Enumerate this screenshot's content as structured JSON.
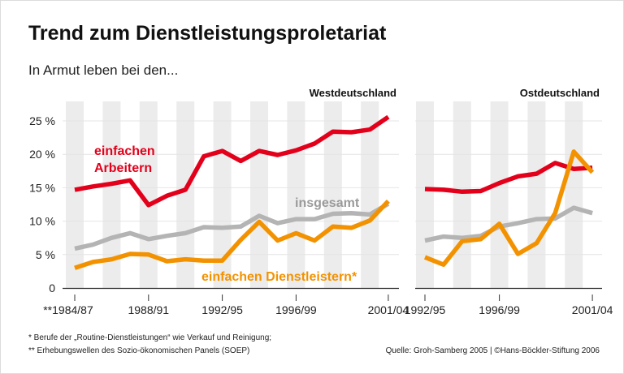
{
  "title": "Trend zum Dienstleistungsproletariat",
  "subtitle": "In Armut leben bei den...",
  "footnote1": "* Berufe der „Routine-Dienstleistungen“ wie Verkauf und Reinigung;",
  "footnote2": "** Erhebungswellen des Sozio-ökonomischen Panels (SOEP)",
  "source": "Quelle: Groh-Samberg 2005 | ©Hans-Böckler-Stiftung 2006",
  "colors": {
    "red": "#e3001b",
    "grey": "#b4b4b4",
    "orange": "#f39200",
    "band": "#ececec"
  },
  "chart_data": [
    {
      "type": "line",
      "title": "Westdeutschland",
      "x": [
        1984,
        1985,
        1986,
        1987,
        1988,
        1989,
        1990,
        1991,
        1992,
        1993,
        1994,
        1995,
        1996,
        1997,
        1998,
        1999,
        2000,
        2001
      ],
      "xticks": [
        {
          "index": 0,
          "label": "**1984/87"
        },
        {
          "index": 4,
          "label": "1988/91"
        },
        {
          "index": 8,
          "label": "1992/95"
        },
        {
          "index": 12,
          "label": "1996/99"
        },
        {
          "index": 17,
          "label": "2001/04"
        }
      ],
      "ylim": [
        0,
        25
      ],
      "yticks": [
        "0",
        "5 %",
        "10 %",
        "15 %",
        "20 %",
        "25 %"
      ],
      "grid": true,
      "series": [
        {
          "name": "einfachen Arbeitern",
          "color": "red",
          "label_lines": [
            "einfachen",
            "Arbeitern"
          ],
          "values": [
            14.7,
            15.2,
            15.6,
            16.1,
            12.4,
            13.8,
            14.7,
            19.7,
            20.5,
            19.0,
            20.5,
            19.9,
            20.6,
            21.6,
            23.4,
            23.3,
            23.7,
            25.6
          ]
        },
        {
          "name": "insgesamt",
          "color": "grey",
          "label_lines": [
            "insgesamt"
          ],
          "values": [
            5.9,
            6.5,
            7.5,
            8.2,
            7.3,
            7.8,
            8.2,
            9.1,
            9.0,
            9.2,
            10.8,
            9.7,
            10.3,
            10.3,
            11.1,
            11.2,
            11.0,
            12.6
          ]
        },
        {
          "name": "einfachen Dienstleistern*",
          "color": "orange",
          "label_lines": [
            "einfachen Dienstleistern*"
          ],
          "values": [
            3.0,
            3.9,
            4.3,
            5.1,
            5.0,
            4.0,
            4.3,
            4.1,
            4.1,
            7.2,
            9.9,
            7.1,
            8.2,
            7.1,
            9.2,
            9.0,
            10.1,
            13.0
          ]
        }
      ]
    },
    {
      "type": "line",
      "title": "Ostdeutschland",
      "x": [
        1992,
        1993,
        1994,
        1995,
        1996,
        1997,
        1998,
        1999,
        2000,
        2001
      ],
      "xticks": [
        {
          "index": 0,
          "label": "1992/95"
        },
        {
          "index": 4,
          "label": "1996/99"
        },
        {
          "index": 9,
          "label": "2001/04"
        }
      ],
      "ylim": [
        0,
        25
      ],
      "grid": true,
      "series": [
        {
          "color": "red",
          "values": [
            14.8,
            14.7,
            14.4,
            14.5,
            15.7,
            16.7,
            17.1,
            18.7,
            17.8,
            18.0
          ]
        },
        {
          "color": "grey",
          "values": [
            7.1,
            7.7,
            7.5,
            7.8,
            9.2,
            9.7,
            10.3,
            10.4,
            12.0,
            11.2
          ]
        },
        {
          "color": "orange",
          "values": [
            4.6,
            3.5,
            7.0,
            7.3,
            9.6,
            5.1,
            6.7,
            11.2,
            20.4,
            17.3
          ]
        }
      ]
    }
  ]
}
